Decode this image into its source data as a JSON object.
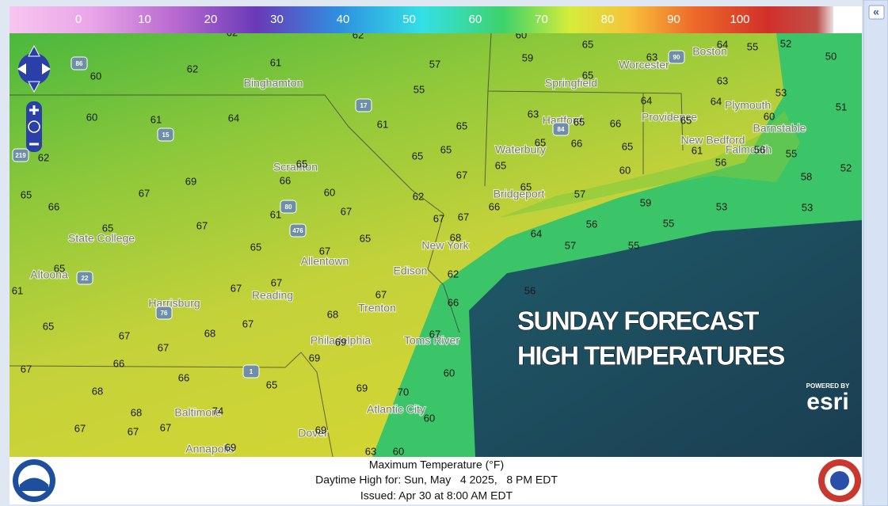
{
  "legend": {
    "ticks": [
      0,
      10,
      20,
      30,
      40,
      50,
      60,
      70,
      80,
      90,
      100
    ]
  },
  "panel": {
    "collapse": "«"
  },
  "map": {
    "temperatures": [
      62,
      62,
      60,
      65,
      64,
      55,
      52,
      50,
      61,
      57,
      59,
      63,
      62,
      60,
      55,
      65,
      63,
      53,
      64,
      64,
      51,
      60,
      61,
      64,
      61,
      65,
      63,
      65,
      66,
      65,
      60,
      62,
      65,
      65,
      65,
      66,
      65,
      61,
      56,
      55,
      52,
      65,
      69,
      67,
      65,
      60,
      56,
      58,
      65,
      66,
      67,
      66,
      60,
      62,
      65,
      57,
      59,
      53,
      53,
      67,
      65,
      61,
      67,
      67,
      67,
      66,
      56,
      55,
      64,
      65,
      65,
      68,
      67,
      57,
      55,
      65,
      62,
      67,
      67,
      61,
      67,
      56,
      66,
      65,
      67,
      68,
      67,
      68,
      67,
      69,
      67,
      67,
      66,
      69,
      60,
      66,
      65,
      69,
      70,
      68,
      68,
      74,
      60,
      67,
      67,
      67,
      69,
      69,
      63,
      60
    ],
    "cities": [
      "Binghamton",
      "Worcester",
      "Boston",
      "Springfield",
      "Plymouth",
      "Hartford",
      "Providence",
      "Barnstable",
      "New Bedford",
      "Falmouth",
      "Waterbury",
      "Scranton",
      "Bridgeport",
      "State College",
      "New York",
      "Allentown",
      "Altoona",
      "Edison",
      "Reading",
      "Harrisburg",
      "Trenton",
      "Philadelphia",
      "Toms River",
      "Baltimore",
      "Atlantic City",
      "Dover",
      "Annapolis"
    ],
    "highways": [
      86,
      17,
      15,
      84,
      90,
      80,
      476,
      22,
      76,
      1,
      219
    ],
    "overlay": {
      "line1": "SUNDAY FORECAST",
      "line2": "HIGH TEMPERATURES"
    },
    "attribution": {
      "powered_by": "POWERED BY",
      "brand": "esri"
    }
  },
  "footer": {
    "title": "Maximum Temperature (°F)",
    "valid": "Daytime High for: Sun, May   4 2025,   8 PM EDT",
    "issued": "Issued: Apr 30 at 8:00 AM EDT"
  },
  "logos": {
    "noaa": "NOAA"
  }
}
